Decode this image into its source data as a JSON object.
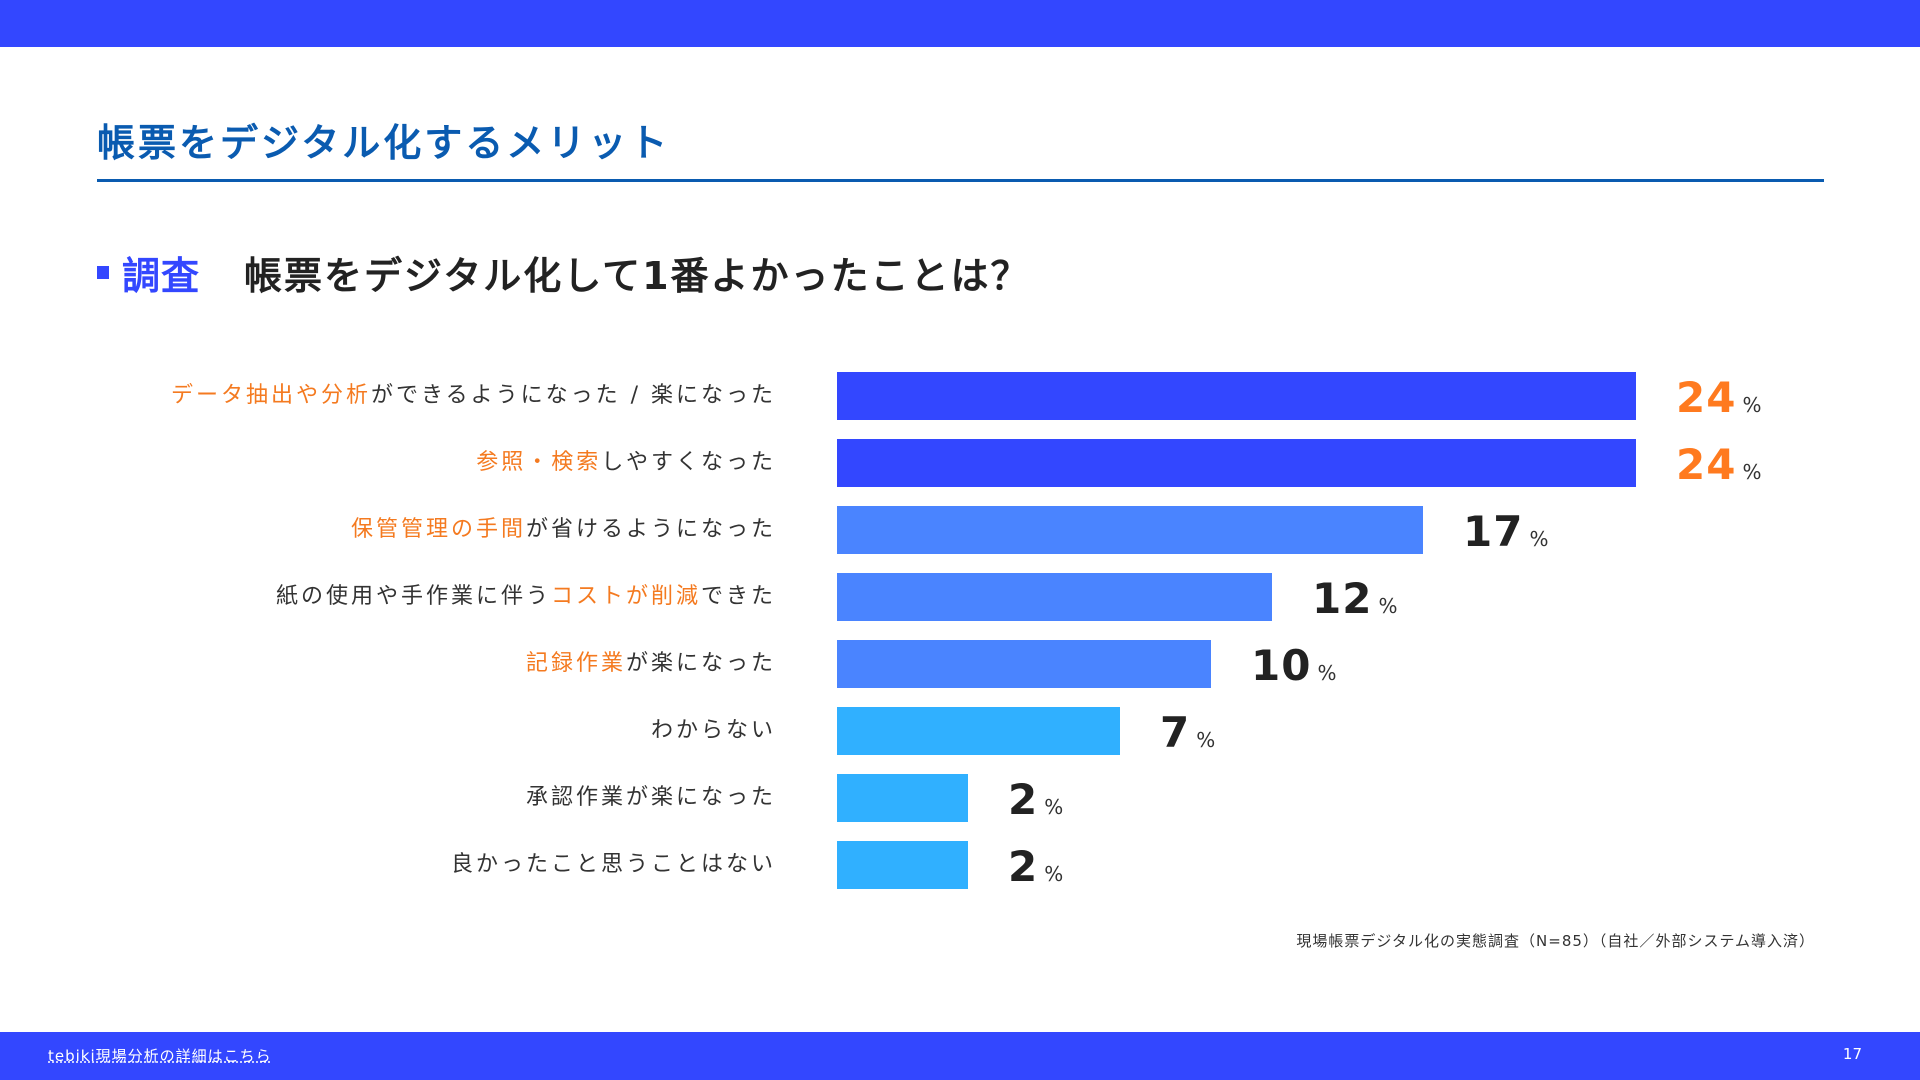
{
  "header": {
    "title": "帳票をデジタル化するメリット"
  },
  "section": {
    "tag": "調査",
    "question": "帳票をデジタル化して1番よかったことは？"
  },
  "colors": {
    "brand_blue": "#3347ff",
    "title_blue": "#0a5bb0",
    "highlight_orange": "#f47a20",
    "bar_tier1": "#3347ff",
    "bar_tier2": "#4a84ff",
    "bar_tier3": "#30b0ff",
    "value_dark": "#222222",
    "value_top": "#ff7a1f"
  },
  "chart_data": {
    "type": "bar",
    "orientation": "horizontal",
    "title": "帳票をデジタル化して1番よかったことは？",
    "xlabel": "",
    "ylabel": "",
    "unit": "%",
    "grid": false,
    "categories": [
      "データ抽出や分析ができるようになった / 楽になった",
      "参照・検索しやすくなった",
      "保管管理の手間が省けるようになった",
      "紙の使用や手作業に伴うコストが削減できた",
      "記録作業が楽になった",
      "わからない",
      "承認作業が楽になった",
      "良かったこと思うことはない"
    ],
    "values": [
      24,
      24,
      17,
      12,
      10,
      7,
      2,
      2
    ],
    "label_parts": [
      [
        {
          "text": "データ抽出や分析",
          "hl": true
        },
        {
          "text": "ができるようになった / 楽になった",
          "hl": false
        }
      ],
      [
        {
          "text": "参照・検索",
          "hl": true
        },
        {
          "text": "しやすくなった",
          "hl": false
        }
      ],
      [
        {
          "text": "保管管理の手間",
          "hl": true
        },
        {
          "text": "が省けるようになった",
          "hl": false
        }
      ],
      [
        {
          "text": "紙の使用や手作業に伴う",
          "hl": false
        },
        {
          "text": "コストが削減",
          "hl": true
        },
        {
          "text": "できた",
          "hl": false
        }
      ],
      [
        {
          "text": "記録作業",
          "hl": true
        },
        {
          "text": "が楽になった",
          "hl": false
        }
      ],
      [
        {
          "text": "わからない",
          "hl": false
        }
      ],
      [
        {
          "text": "承認作業が楽になった",
          "hl": false
        }
      ],
      [
        {
          "text": "良かったこと思うことはない",
          "hl": false
        }
      ]
    ],
    "bar_tiers": [
      1,
      1,
      2,
      2,
      2,
      3,
      3,
      3
    ],
    "top_highlighted": [
      true,
      true,
      false,
      false,
      false,
      false,
      false,
      false
    ],
    "source": "現場帳票デジタル化の実態調査（N=85）（自社／外部システム導入済）"
  },
  "footer": {
    "link_text": "tebiki現場分析の詳細はこちら",
    "page_number": "17"
  }
}
